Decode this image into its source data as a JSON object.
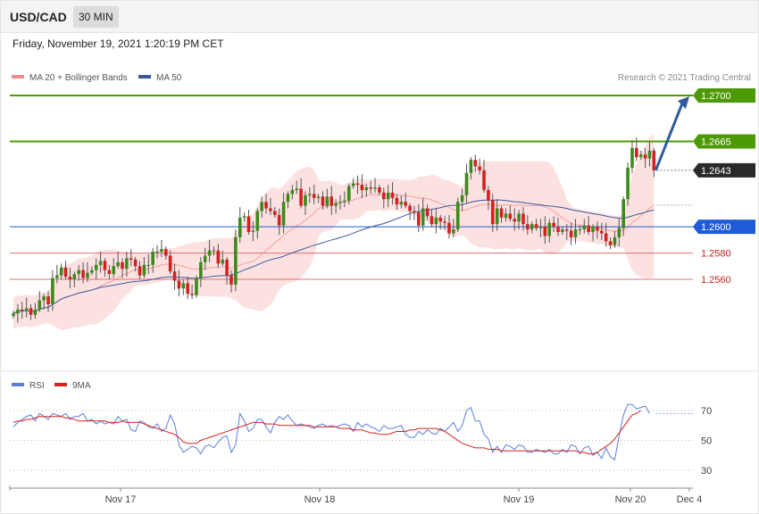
{
  "header": {
    "symbol": "USD/CAD",
    "timeframe": "30 MIN",
    "datetime": "Friday, November 19, 2021 1:20:19 PM CET"
  },
  "legend": {
    "items": [
      {
        "label": "MA 20 + Bollinger Bands",
        "color": "#f38a8a"
      },
      {
        "label": "MA 50",
        "color": "#3a5a9c"
      }
    ],
    "credit": "Research © 2021 Trading Central"
  },
  "rsi_legend": {
    "items": [
      {
        "label": "RSI",
        "color": "#5b7fd6"
      },
      {
        "label": "9MA",
        "color": "#d42020"
      }
    ]
  },
  "chart_data": [
    {
      "type": "candlestick",
      "instrument": "USD/CAD",
      "interval": "30 MIN",
      "ylim": [
        1.2485,
        1.2718
      ],
      "x_ticks": [
        "Nov 17",
        "Nov 18",
        "Nov 19",
        "Nov 20",
        "Dec 4"
      ],
      "levels": [
        {
          "value": 1.27,
          "label": "1.2700",
          "color": "#4e9a06",
          "kind": "resistance"
        },
        {
          "value": 1.2665,
          "label": "1.2665",
          "color": "#4e9a06",
          "kind": "resistance"
        },
        {
          "value": 1.2643,
          "label": "1.2643",
          "color": "#2a2a2a",
          "kind": "last-price"
        },
        {
          "value": 1.26,
          "label": "1.2600",
          "color": "#1f5bd6",
          "kind": "pivot"
        },
        {
          "value": 1.258,
          "label": "1.2580",
          "color": "#e07070",
          "kind": "support"
        },
        {
          "value": 1.256,
          "label": "1.2560",
          "color": "#e07070",
          "kind": "support"
        }
      ],
      "close": [
        1.2534,
        1.2537,
        1.2536,
        1.2538,
        1.2533,
        1.2537,
        1.2544,
        1.2547,
        1.2541,
        1.2561,
        1.2563,
        1.2569,
        1.2562,
        1.256,
        1.2564,
        1.2567,
        1.2561,
        1.2565,
        1.2567,
        1.2571,
        1.2574,
        1.2567,
        1.2564,
        1.257,
        1.2573,
        1.2568,
        1.2576,
        1.2575,
        1.257,
        1.2563,
        1.2571,
        1.2571,
        1.2581,
        1.2581,
        1.2583,
        1.2578,
        1.2566,
        1.2559,
        1.2553,
        1.2557,
        1.2549,
        1.2548,
        1.2561,
        1.2573,
        1.2578,
        1.2582,
        1.2582,
        1.2572,
        1.2575,
        1.2563,
        1.2556,
        1.2592,
        1.2607,
        1.2608,
        1.2596,
        1.2597,
        1.2612,
        1.2619,
        1.2614,
        1.2612,
        1.2609,
        1.2601,
        1.2619,
        1.2625,
        1.2628,
        1.2629,
        1.2616,
        1.2624,
        1.2625,
        1.2622,
        1.2623,
        1.2616,
        1.2623,
        1.2616,
        1.2618,
        1.2619,
        1.262,
        1.2631,
        1.2633,
        1.2632,
        1.2628,
        1.263,
        1.2629,
        1.263,
        1.2626,
        1.2621,
        1.2626,
        1.2622,
        1.2617,
        1.2619,
        1.2616,
        1.2612,
        1.2611,
        1.2601,
        1.2614,
        1.2608,
        1.2602,
        1.2607,
        1.2604,
        1.2603,
        1.2595,
        1.2598,
        1.2619,
        1.2624,
        1.2641,
        1.2651,
        1.2646,
        1.2643,
        1.2628,
        1.262,
        1.2602,
        1.2614,
        1.2607,
        1.261,
        1.2606,
        1.2604,
        1.261,
        1.2602,
        1.2598,
        1.2602,
        1.2599,
        1.26,
        1.2593,
        1.2603,
        1.26,
        1.2596,
        1.2598,
        1.2597,
        1.2592,
        1.2598,
        1.2598,
        1.2601,
        1.2596,
        1.26,
        1.2597,
        1.2595,
        1.2589,
        1.2586,
        1.2592,
        1.2599,
        1.2621,
        1.2645,
        1.266,
        1.2653,
        1.2655,
        1.2652,
        1.2658,
        1.2643
      ],
      "rsi": [
        [
          59,
          62,
          64,
          66,
          67,
          63,
          68,
          66,
          64,
          68,
          67,
          66,
          68,
          64,
          66,
          66,
          68,
          63,
          64,
          61,
          63,
          61,
          62,
          61,
          66,
          63,
          64,
          57,
          56,
          63,
          62,
          59,
          58,
          61,
          56,
          58,
          67,
          61,
          47,
          42,
          44,
          46,
          45,
          41,
          46,
          47,
          45,
          49,
          52,
          53,
          42,
          47,
          68,
          63,
          56,
          58,
          64,
          64,
          59,
          55,
          62,
          66,
          64,
          67,
          63,
          60,
          61,
          60,
          59,
          58,
          60,
          61,
          59,
          60,
          59,
          60,
          61,
          60,
          56,
          62,
          59,
          61,
          59,
          58,
          56,
          60,
          58,
          58,
          59,
          60,
          54,
          52,
          52,
          56,
          54,
          57,
          55,
          54,
          58,
          56,
          59,
          62,
          56,
          60,
          70,
          72,
          63,
          63,
          54,
          51,
          42,
          46,
          42,
          47,
          46,
          44,
          47,
          46,
          42,
          42,
          44,
          43,
          42,
          44,
          41,
          41,
          44,
          42,
          47,
          46,
          41,
          45,
          46,
          40,
          42,
          38,
          45,
          39,
          37,
          53,
          67,
          74,
          74,
          71,
          72,
          73,
          68
        ],
        [
          62,
          63,
          63,
          64,
          64,
          65,
          66,
          66,
          66,
          66,
          66,
          66,
          65,
          65,
          64,
          63,
          63,
          63,
          63,
          63,
          63,
          63,
          62,
          62,
          62,
          63,
          62,
          62,
          62,
          62,
          61,
          60,
          59,
          58,
          57,
          56,
          55,
          54,
          52,
          49,
          48,
          48,
          48,
          50,
          51,
          52,
          53,
          54,
          55,
          56,
          57,
          58,
          59,
          60,
          61,
          62,
          62,
          62,
          61,
          61,
          61,
          60,
          60,
          60,
          60,
          60,
          60,
          60,
          60,
          59,
          59,
          59,
          59,
          59,
          59,
          58,
          58,
          58,
          57,
          57,
          57,
          56,
          55,
          55,
          54,
          54,
          54,
          55,
          56,
          56,
          56,
          57,
          57,
          58,
          58,
          58,
          58,
          58,
          57,
          56,
          54,
          52,
          50,
          48,
          47,
          46,
          45,
          45,
          45,
          44,
          44,
          44,
          43,
          43,
          43,
          43,
          43,
          43,
          43,
          43,
          43,
          43,
          43,
          43,
          43,
          43,
          43,
          43,
          43,
          43,
          42,
          42,
          41,
          41,
          42,
          44,
          46,
          48,
          51,
          55,
          59,
          63,
          67,
          68,
          70
        ]
      ],
      "rsi_ylim": [
        25,
        80
      ],
      "rsi_levels": [
        70,
        50,
        30
      ]
    }
  ]
}
